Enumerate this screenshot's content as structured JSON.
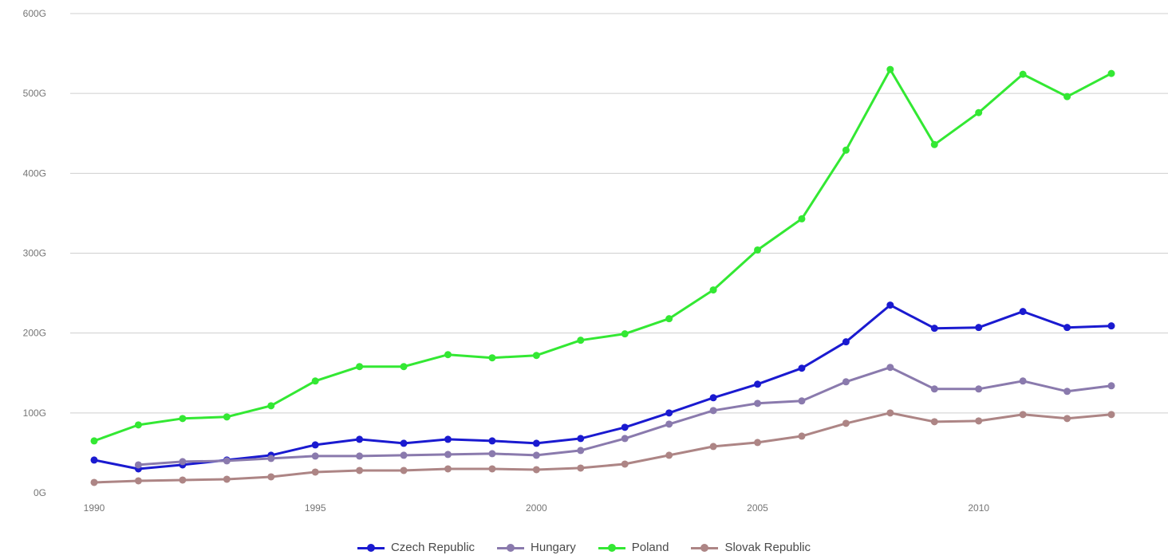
{
  "chart_data": {
    "type": "line",
    "title": "",
    "xlabel": "",
    "ylabel": "",
    "x": [
      1990,
      1991,
      1992,
      1993,
      1994,
      1995,
      1996,
      1997,
      1998,
      1999,
      2000,
      2001,
      2002,
      2003,
      2004,
      2005,
      2006,
      2007,
      2008,
      2009,
      2010,
      2011,
      2012,
      2013
    ],
    "xlim": [
      1990,
      2013.5
    ],
    "ylim": [
      0,
      600
    ],
    "x_ticks": [
      1990,
      1995,
      2000,
      2005,
      2010
    ],
    "y_ticks": [
      0,
      100,
      200,
      300,
      400,
      500,
      600
    ],
    "y_tick_labels": [
      "0G",
      "100G",
      "200G",
      "300G",
      "400G",
      "500G",
      "600G"
    ],
    "grid": true,
    "legend_position": "bottom",
    "series": [
      {
        "name": "Czech Republic",
        "color": "#1a1ad0",
        "values": [
          41,
          30,
          35,
          41,
          47,
          60,
          67,
          62,
          67,
          65,
          62,
          68,
          82,
          100,
          119,
          136,
          156,
          189,
          235,
          206,
          207,
          227,
          207,
          209
        ]
      },
      {
        "name": "Hungary",
        "color": "#8a7aad",
        "values": [
          null,
          35,
          39,
          40,
          43,
          46,
          46,
          47,
          48,
          49,
          47,
          53,
          68,
          86,
          103,
          112,
          115,
          139,
          157,
          130,
          130,
          140,
          127,
          134
        ]
      },
      {
        "name": "Poland",
        "color": "#33e833",
        "values": [
          65,
          85,
          93,
          95,
          109,
          140,
          158,
          158,
          173,
          169,
          172,
          191,
          199,
          218,
          254,
          304,
          343,
          429,
          530,
          436,
          476,
          524,
          496,
          525
        ]
      },
      {
        "name": "Slovak Republic",
        "color": "#ad8585",
        "values": [
          13,
          15,
          16,
          17,
          20,
          26,
          28,
          28,
          30,
          30,
          29,
          31,
          36,
          47,
          58,
          63,
          71,
          87,
          100,
          89,
          90,
          98,
          93,
          98
        ]
      }
    ]
  }
}
